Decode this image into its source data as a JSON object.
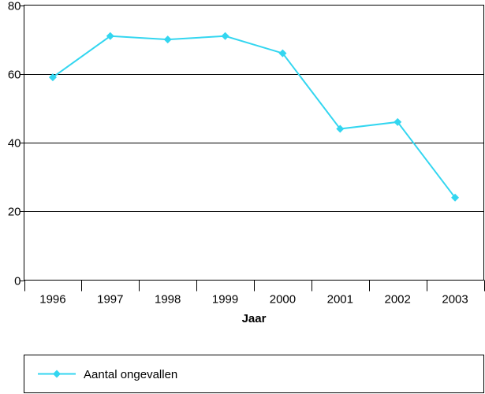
{
  "chart_data": {
    "type": "line",
    "title": "",
    "xlabel": "Jaar",
    "ylabel": "",
    "categories": [
      "1996",
      "1997",
      "1998",
      "1999",
      "2000",
      "2001",
      "2002",
      "2003"
    ],
    "series": [
      {
        "name": "Aantal ongevallen",
        "values": [
          59,
          71,
          70,
          71,
          66,
          44,
          46,
          24
        ],
        "color": "#33d6f0"
      }
    ],
    "ylim": [
      0,
      80
    ],
    "yticks": [
      0,
      20,
      40,
      60,
      80
    ],
    "grid": true,
    "legend": "bottom"
  }
}
